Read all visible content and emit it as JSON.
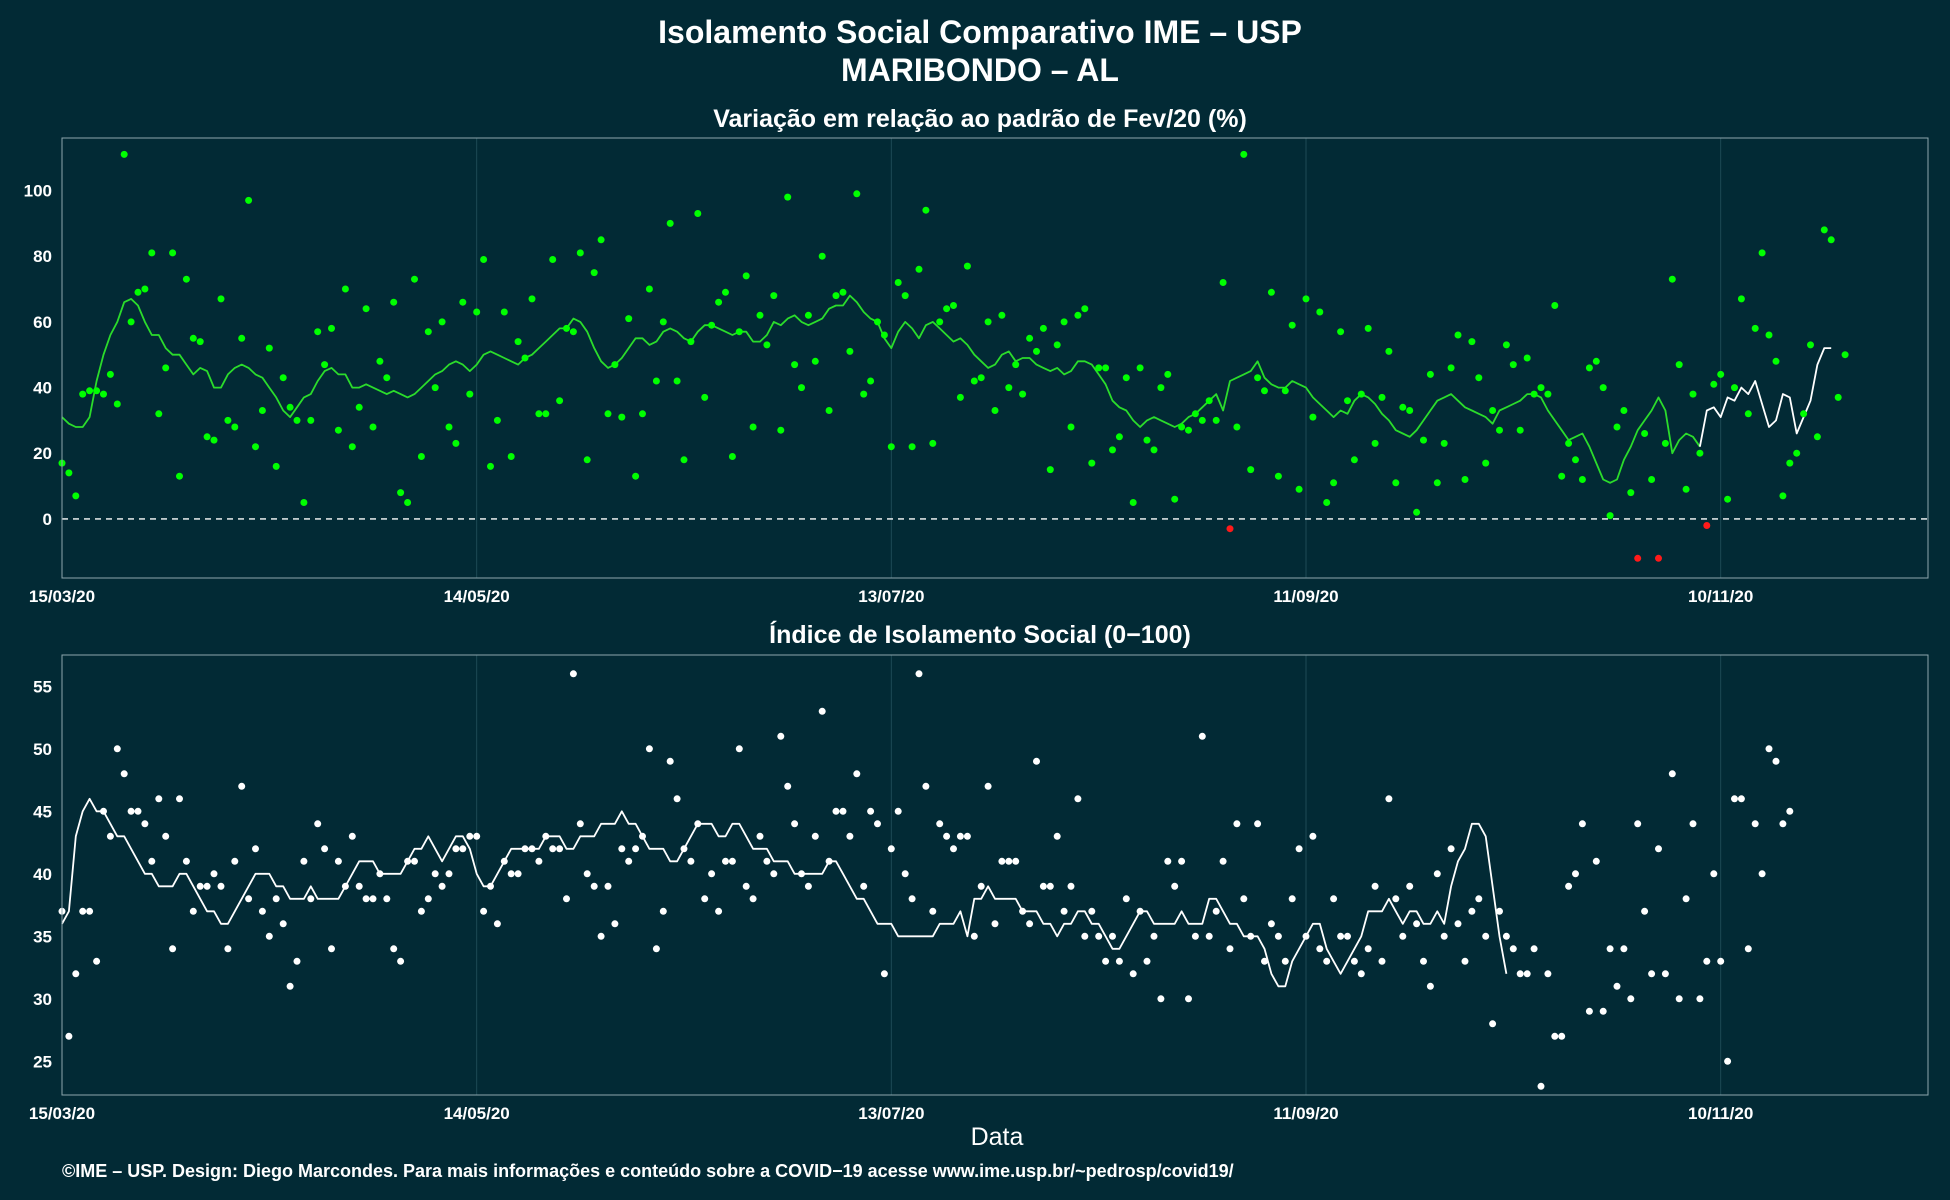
{
  "header": {
    "title": "Isolamento Social Comparativo IME – USP",
    "subtitle": "MARIBONDO – AL"
  },
  "footer": {
    "xlabel": "Data",
    "caption": "©IME – USP. Design: Diego Marcondes. Para mais informações e conteúdo sobre a COVID−19 acesse www.ime.usp.br/~pedrosp/covid19/"
  },
  "colors": {
    "background": "#022a35",
    "grid": "#1d4a55",
    "frame": "#8da7ad",
    "top_points": "#00ff00",
    "top_negative": "#ff1a1a",
    "top_line": "#2bdc2b",
    "top_line_recent": "#ffffff",
    "bottom_points": "#ffffff",
    "bottom_line": "#ffffff",
    "zero_line": "#ffffff"
  },
  "chart_data": [
    {
      "type": "scatter",
      "title": "Variação em relação ao padrão de Fev/20 (%)",
      "xlabel": "",
      "ylabel": "",
      "x_start": "15/03/20",
      "x_ticks": [
        {
          "label": "15/03/20",
          "day": 0
        },
        {
          "label": "14/05/20",
          "day": 60
        },
        {
          "label": "13/07/20",
          "day": 120
        },
        {
          "label": "11/09/20",
          "day": 180
        },
        {
          "label": "10/11/20",
          "day": 240
        }
      ],
      "xlim": [
        0,
        270
      ],
      "ylim": [
        -18,
        116
      ],
      "y_ticks": [
        0,
        20,
        40,
        60,
        80,
        100
      ],
      "reference_line": 0,
      "series": [
        {
          "role": "daily",
          "values": [
            17,
            14,
            7,
            38,
            39,
            39,
            38,
            44,
            35,
            111,
            60,
            69,
            70,
            81,
            32,
            46,
            81,
            13,
            73,
            55,
            54,
            25,
            24,
            67,
            30,
            28,
            55,
            97,
            22,
            33,
            52,
            16,
            43,
            34,
            30,
            5,
            30,
            57,
            47,
            58,
            27,
            70,
            22,
            34,
            64,
            28,
            48,
            43,
            66,
            8,
            5,
            73,
            19,
            57,
            40,
            60,
            28,
            23,
            66,
            38,
            63,
            79,
            16,
            30,
            63,
            19,
            54,
            49,
            67,
            32,
            32,
            79,
            36,
            58,
            57,
            81,
            18,
            75,
            85,
            32,
            47,
            31,
            61,
            13,
            32,
            70,
            42,
            60,
            90,
            42,
            18,
            54,
            93,
            37,
            59,
            66,
            69,
            19,
            57,
            74,
            28,
            62,
            53,
            68,
            27,
            98,
            47,
            40,
            62,
            48,
            80,
            33,
            68,
            69,
            51,
            99,
            38,
            42,
            60,
            56,
            22,
            72,
            68,
            22,
            76,
            94,
            23,
            60,
            64,
            65,
            37,
            77,
            42,
            43,
            60,
            33,
            62,
            40,
            47,
            38,
            55,
            51,
            58,
            15,
            53,
            60,
            28,
            62,
            64,
            17,
            46,
            46,
            21,
            25,
            43,
            5,
            46,
            24,
            21,
            40,
            44,
            6,
            28,
            27,
            32,
            30,
            36,
            30,
            72,
            -3,
            28,
            111,
            15,
            43,
            39,
            69,
            13,
            39,
            59,
            9,
            67,
            31,
            63,
            5,
            11,
            57,
            36,
            18,
            38,
            58,
            23,
            37,
            51,
            11,
            34,
            33,
            2,
            24,
            44,
            11,
            23,
            46,
            56,
            12,
            54,
            43,
            17,
            33,
            27,
            53,
            47,
            27,
            49,
            38,
            40,
            38,
            65,
            13,
            23,
            18,
            12,
            46,
            48,
            40,
            1,
            28,
            33,
            8,
            -12,
            26,
            12,
            -12,
            23,
            73,
            47,
            9,
            38,
            20,
            -2,
            41,
            44,
            6,
            40,
            67,
            32,
            58,
            81,
            56,
            48,
            7,
            17,
            20,
            32,
            53,
            25,
            88,
            85,
            37,
            50
          ]
        },
        {
          "role": "moving-average",
          "values": [
            31,
            29,
            28,
            28,
            31,
            42,
            50,
            56,
            60,
            66,
            67,
            65,
            60,
            56,
            56,
            52,
            50,
            50,
            47,
            44,
            46,
            45,
            40,
            40,
            44,
            46,
            47,
            46,
            44,
            43,
            40,
            37,
            33,
            31,
            34,
            37,
            38,
            42,
            45,
            46,
            44,
            44,
            40,
            40,
            41,
            40,
            39,
            38,
            39,
            38,
            37,
            38,
            40,
            42,
            44,
            45,
            47,
            48,
            47,
            45,
            47,
            50,
            51,
            50,
            49,
            48,
            47,
            49,
            50,
            52,
            54,
            56,
            58,
            58,
            61,
            60,
            57,
            52,
            48,
            46,
            47,
            49,
            52,
            55,
            55,
            53,
            54,
            57,
            58,
            57,
            55,
            54,
            57,
            59,
            59,
            58,
            57,
            56,
            57,
            57,
            54,
            54,
            56,
            60,
            59,
            61,
            62,
            60,
            59,
            60,
            61,
            64,
            65,
            65,
            68,
            66,
            63,
            61,
            60,
            55,
            52,
            57,
            60,
            58,
            55,
            59,
            60,
            58,
            56,
            54,
            55,
            53,
            50,
            48,
            46,
            47,
            50,
            51,
            48,
            49,
            49,
            47,
            46,
            45,
            46,
            44,
            45,
            48,
            48,
            47,
            44,
            41,
            36,
            34,
            33,
            30,
            28,
            30,
            31,
            30,
            29,
            28,
            29,
            31,
            32,
            34,
            36,
            38,
            33,
            42,
            43,
            44,
            45,
            48,
            43,
            41,
            40,
            40,
            42,
            41,
            40,
            37,
            35,
            33,
            31,
            33,
            32,
            36,
            38,
            37,
            35,
            32,
            30,
            27,
            26,
            25,
            27,
            30,
            33,
            36,
            37,
            38,
            36,
            34,
            33,
            32,
            31,
            29,
            33,
            34,
            35,
            36,
            38,
            38,
            37,
            33,
            30,
            27,
            24,
            25,
            26,
            22,
            17,
            12,
            11,
            12,
            18,
            22,
            27,
            30,
            33,
            37,
            33,
            20,
            24,
            26,
            25,
            22,
            33,
            34,
            31,
            37,
            36,
            40,
            38,
            42,
            35,
            28,
            30,
            38,
            37,
            26,
            31,
            36,
            47,
            52,
            52
          ]
        }
      ]
    },
    {
      "type": "scatter",
      "title": "Índice de Isolamento Social (0−100)",
      "xlabel": "Data",
      "ylabel": "",
      "x_start": "15/03/20",
      "x_ticks": [
        {
          "label": "15/03/20",
          "day": 0
        },
        {
          "label": "14/05/20",
          "day": 60
        },
        {
          "label": "13/07/20",
          "day": 120
        },
        {
          "label": "11/09/20",
          "day": 180
        },
        {
          "label": "10/11/20",
          "day": 240
        }
      ],
      "xlim": [
        0,
        270
      ],
      "ylim": [
        22.3,
        57.5
      ],
      "y_ticks": [
        25,
        30,
        35,
        40,
        45,
        50,
        55
      ],
      "series": [
        {
          "role": "daily",
          "values": [
            37,
            27,
            32,
            37,
            37,
            33,
            45,
            43,
            50,
            48,
            45,
            45,
            44,
            41,
            46,
            43,
            34,
            46,
            41,
            37,
            39,
            39,
            40,
            39,
            34,
            41,
            47,
            38,
            42,
            37,
            35,
            38,
            36,
            31,
            33,
            41,
            38,
            44,
            42,
            34,
            41,
            39,
            43,
            39,
            38,
            38,
            40,
            38,
            34,
            33,
            41,
            41,
            37,
            38,
            40,
            39,
            40,
            42,
            42,
            43,
            43,
            37,
            39,
            36,
            41,
            40,
            40,
            42,
            42,
            41,
            43,
            42,
            42,
            38,
            56,
            44,
            40,
            39,
            35,
            39,
            36,
            42,
            41,
            42,
            43,
            50,
            34,
            37,
            49,
            46,
            42,
            41,
            44,
            38,
            40,
            37,
            41,
            41,
            50,
            39,
            38,
            43,
            41,
            40,
            51,
            47,
            44,
            40,
            39,
            43,
            53,
            41,
            45,
            45,
            43,
            48,
            39,
            45,
            44,
            32,
            42,
            45,
            40,
            38,
            56,
            47,
            37,
            44,
            43,
            42,
            43,
            43,
            35,
            39,
            47,
            36,
            41,
            41,
            41,
            37,
            36,
            49,
            39,
            39,
            43,
            37,
            39,
            46,
            35,
            37,
            35,
            33,
            35,
            33,
            38,
            32,
            37,
            33,
            35,
            30,
            41,
            39,
            41,
            30,
            35,
            51,
            35,
            37,
            41,
            34,
            44,
            38,
            35,
            44,
            33,
            36,
            35,
            33,
            38,
            42,
            35,
            43,
            34,
            33,
            38,
            35,
            35,
            33,
            32,
            34,
            39,
            33,
            46,
            38,
            35,
            39,
            36,
            33,
            31,
            40,
            35,
            42,
            36,
            33,
            37,
            38,
            35,
            28,
            37,
            35,
            34,
            32,
            32,
            34,
            23,
            32,
            27,
            27,
            39,
            40,
            44,
            29,
            41,
            29,
            34,
            31,
            34,
            30,
            44,
            37,
            32,
            42,
            32,
            48,
            30,
            38,
            44,
            30,
            33,
            40,
            33,
            25,
            46,
            46,
            34,
            44,
            40,
            50,
            49,
            44,
            45
          ]
        },
        {
          "role": "moving-average",
          "values": [
            36,
            37,
            43,
            45,
            46,
            45,
            45,
            44,
            43,
            43,
            42,
            41,
            40,
            40,
            39,
            39,
            39,
            40,
            40,
            39,
            38,
            37,
            37,
            36,
            36,
            37,
            38,
            39,
            40,
            40,
            40,
            39,
            39,
            38,
            38,
            38,
            39,
            38,
            38,
            38,
            38,
            39,
            40,
            41,
            41,
            41,
            40,
            40,
            40,
            40,
            41,
            42,
            42,
            43,
            42,
            41,
            42,
            43,
            43,
            42,
            40,
            39,
            39,
            40,
            41,
            42,
            42,
            42,
            42,
            42,
            43,
            43,
            43,
            42,
            42,
            43,
            43,
            43,
            44,
            44,
            44,
            45,
            44,
            44,
            43,
            42,
            42,
            42,
            41,
            41,
            42,
            43,
            44,
            44,
            44,
            43,
            43,
            44,
            44,
            43,
            42,
            42,
            42,
            41,
            41,
            41,
            40,
            40,
            40,
            40,
            40,
            41,
            41,
            40,
            39,
            38,
            38,
            37,
            36,
            36,
            36,
            35,
            35,
            35,
            35,
            35,
            35,
            36,
            36,
            36,
            37,
            35,
            38,
            38,
            39,
            38,
            38,
            38,
            38,
            37,
            37,
            37,
            36,
            36,
            35,
            36,
            36,
            37,
            37,
            36,
            36,
            35,
            34,
            34,
            35,
            36,
            37,
            37,
            36,
            36,
            36,
            36,
            37,
            36,
            36,
            36,
            38,
            38,
            37,
            36,
            36,
            35,
            35,
            35,
            34,
            32,
            31,
            31,
            33,
            34,
            35,
            36,
            36,
            34,
            33,
            32,
            33,
            34,
            35,
            37,
            37,
            37,
            38,
            37,
            36,
            37,
            37,
            36,
            36,
            37,
            36,
            39,
            41,
            42,
            44,
            44,
            43,
            39,
            35,
            32
          ]
        }
      ]
    }
  ]
}
